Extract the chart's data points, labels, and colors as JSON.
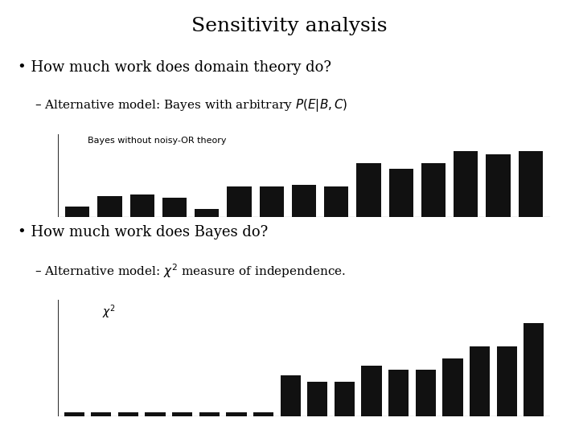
{
  "title": "Sensitivity analysis",
  "bullet1": "How much work does domain theory do?",
  "sub1": "– Alternative model: Bayes with arbitrary $P(E|B,C)$",
  "label1": "Bayes without noisy-OR theory",
  "bars1": [
    0.1,
    0.2,
    0.22,
    0.19,
    0.08,
    0.3,
    0.3,
    0.31,
    0.3,
    0.52,
    0.47,
    0.52,
    0.64,
    0.61,
    0.64
  ],
  "bullet2": "How much work does Bayes do?",
  "sub2": "– Alternative model: $\\chi^2$ measure of independence.",
  "label2": "$\\chi^2$",
  "bars2": [
    0.03,
    0.03,
    0.03,
    0.03,
    0.03,
    0.03,
    0.03,
    0.03,
    0.28,
    0.24,
    0.24,
    0.35,
    0.32,
    0.32,
    0.4,
    0.48,
    0.48,
    0.64
  ],
  "bar_color": "#111111",
  "bg_color": "#ffffff",
  "title_fontsize": 18,
  "text_fontsize": 13,
  "sub_fontsize": 11,
  "label_fontsize": 8
}
